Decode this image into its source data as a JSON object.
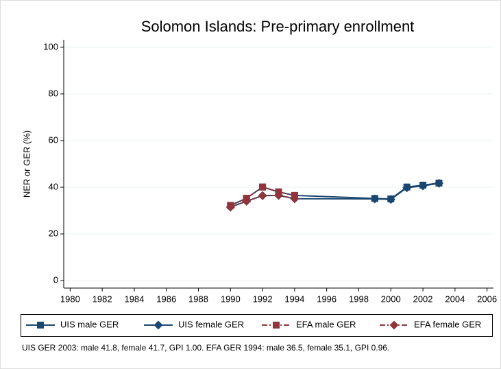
{
  "chart_data": {
    "type": "line",
    "title": "Solomon Islands: Pre-primary enrollment",
    "ylabel": "NER or GER (%)",
    "note": "UIS GER 2003: male 41.8, female 41.7, GPI 1.00. EFA GER 1994: male 36.5, female 35.1, GPI 0.96.",
    "xlim": [
      1979.6,
      2006.4
    ],
    "xticks": [
      1980,
      1982,
      1984,
      1986,
      1988,
      1990,
      1992,
      1994,
      1996,
      1998,
      2000,
      2002,
      2004,
      2006
    ],
    "ylim": [
      -3.2,
      103.2
    ],
    "yticks": [
      0,
      20,
      40,
      60,
      80,
      100
    ],
    "grid": true,
    "legend": "bottom",
    "series": [
      {
        "name": "UIS male GER",
        "color": "#1a476f",
        "marker": "square",
        "dash": "solid",
        "x": [
          1990,
          1991,
          1992,
          1993,
          1994,
          1999,
          2000,
          2001,
          2002,
          2003
        ],
        "values": [
          32.2,
          35.3,
          40.1,
          38.0,
          36.5,
          35.2,
          35.0,
          40.1,
          40.9,
          41.8
        ]
      },
      {
        "name": "UIS female GER",
        "color": "#1a476f",
        "marker": "diamond",
        "dash": "solid",
        "x": [
          1990,
          1991,
          1992,
          1993,
          1994,
          1999,
          2000,
          2001,
          2002,
          2003
        ],
        "values": [
          31.5,
          34.0,
          36.4,
          36.5,
          35.1,
          35.0,
          34.8,
          39.8,
          40.6,
          41.7
        ]
      },
      {
        "name": "EFA male GER",
        "color": "#90353b",
        "marker": "square",
        "dash": "dashdot",
        "x": [
          1990,
          1991,
          1992,
          1993,
          1994
        ],
        "values": [
          32.2,
          35.3,
          40.1,
          38.0,
          36.5
        ]
      },
      {
        "name": "EFA female GER",
        "color": "#90353b",
        "marker": "diamond",
        "dash": "dashdot",
        "x": [
          1990,
          1991,
          1992,
          1993,
          1994
        ],
        "values": [
          31.5,
          34.0,
          36.4,
          36.5,
          35.1
        ]
      }
    ]
  }
}
